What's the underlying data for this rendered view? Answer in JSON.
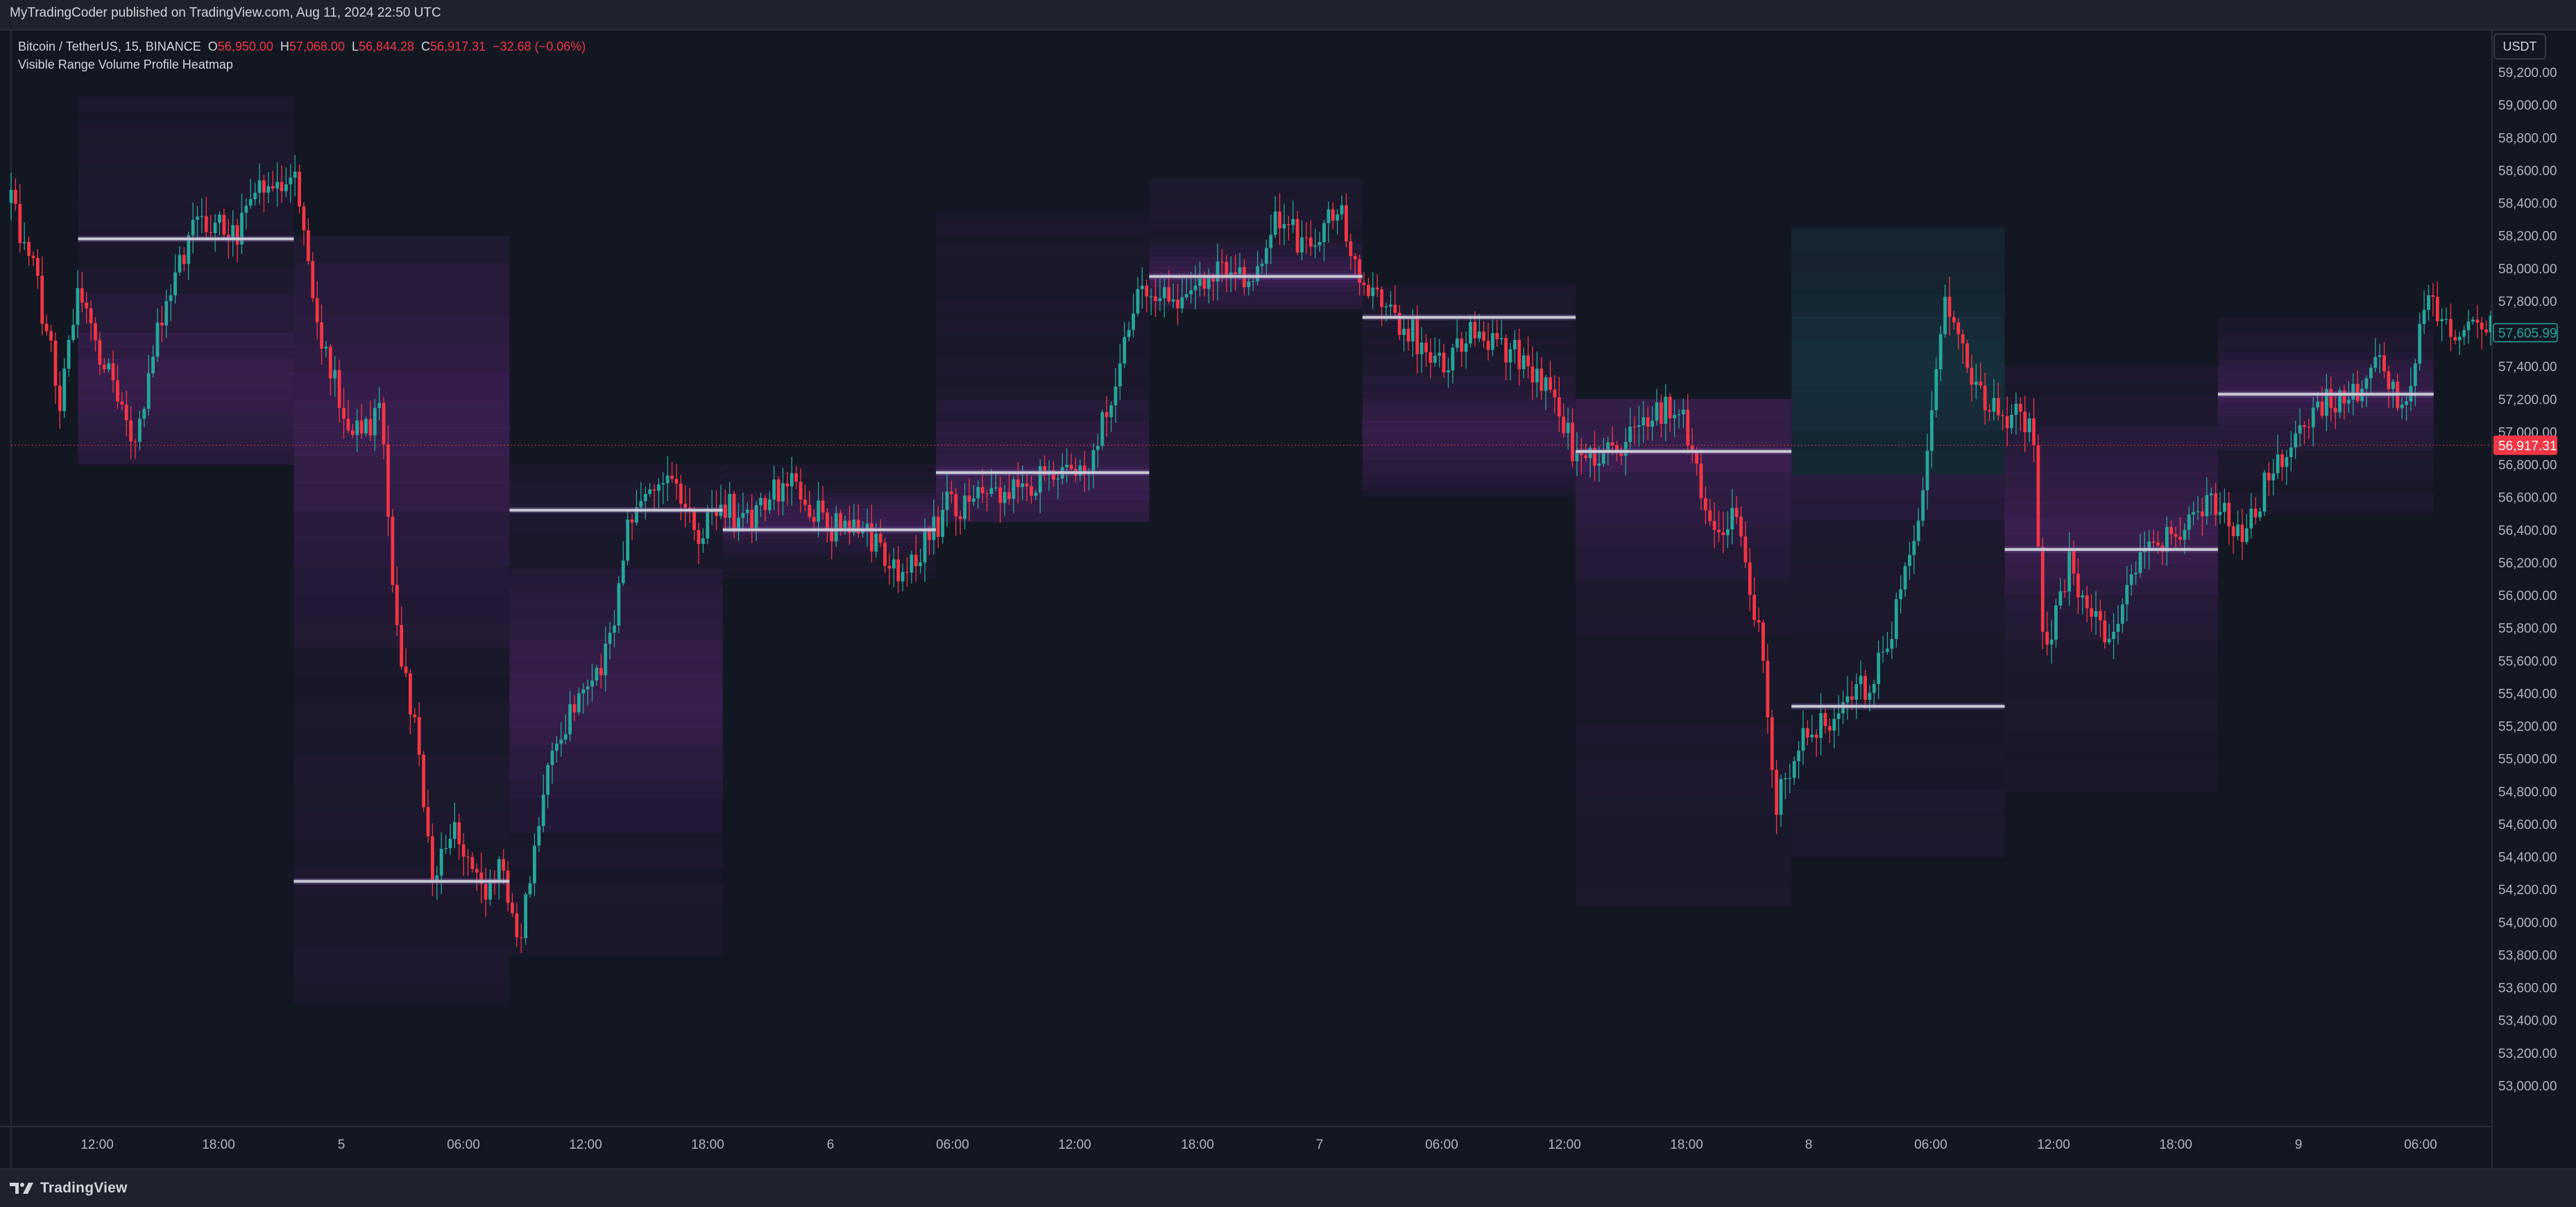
{
  "header": {
    "published_line": "MyTradingCoder published on TradingView.com, Aug 11, 2024 22:50 UTC"
  },
  "legend": {
    "symbol": "Bitcoin / TetherUS, 15, BINANCE",
    "open_label": "O",
    "open_value": "56,950.00",
    "high_label": "H",
    "high_value": "57,068.00",
    "low_label": "L",
    "low_value": "56,844.28",
    "close_label": "C",
    "close_value": "56,917.31",
    "change": "−32.68 (−0.06%)",
    "indicator": "Visible Range Volume Profile Heatmap"
  },
  "price_scale": {
    "currency": "USDT",
    "ticks": [
      "59,200.00",
      "59,000.00",
      "58,800.00",
      "58,600.00",
      "58,400.00",
      "58,200.00",
      "58,000.00",
      "57,800.00",
      "57,600.00",
      "57,400.00",
      "57,200.00",
      "57,000.00",
      "56,800.00",
      "56,600.00",
      "56,400.00",
      "56,200.00",
      "56,000.00",
      "55,800.00",
      "55,600.00",
      "55,400.00",
      "55,200.00",
      "55,000.00",
      "54,800.00",
      "54,600.00",
      "54,400.00",
      "54,200.00",
      "54,000.00",
      "53,800.00",
      "53,600.00",
      "53,400.00",
      "53,200.00",
      "53,000.00"
    ],
    "last_price_label": "56,917.31",
    "second_price_label": "57,605.99"
  },
  "time_scale": {
    "ticks": [
      "12:00",
      "18:00",
      "5",
      "06:00",
      "12:00",
      "18:00",
      "6",
      "06:00",
      "12:00",
      "18:00",
      "7",
      "06:00",
      "12:00",
      "18:00",
      "8",
      "06:00",
      "12:00",
      "18:00",
      "9",
      "06:00"
    ]
  },
  "colors": {
    "background": "#131722",
    "up": "#26a69a",
    "down": "#f23645",
    "poc": "#c8cad3",
    "profile_purple": "#7b2d9e",
    "profile_teal": "#1e5a6a"
  },
  "footer": {
    "brand": "TradingView"
  },
  "chart_data": {
    "type": "candlestick",
    "symbol": "Bitcoin / TetherUS",
    "interval": "15",
    "exchange": "BINANCE",
    "ylim": [
      52900,
      59400
    ],
    "y_ticks": [
      59200,
      59000,
      58800,
      58600,
      58400,
      58200,
      58000,
      57800,
      57600,
      57400,
      57200,
      57000,
      56800,
      56600,
      56400,
      56200,
      56000,
      55800,
      55600,
      55400,
      55200,
      55000,
      54800,
      54600,
      54400,
      54200,
      54000,
      53800,
      53600,
      53400,
      53200,
      53000
    ],
    "last_price": 56917.31,
    "price_path": [
      {
        "t": 0,
        "p": 58400
      },
      {
        "t": 0.012,
        "p": 57800
      },
      {
        "t": 0.02,
        "p": 57200
      },
      {
        "t": 0.028,
        "p": 57900
      },
      {
        "t": 0.038,
        "p": 57400
      },
      {
        "t": 0.05,
        "p": 56900
      },
      {
        "t": 0.062,
        "p": 57800
      },
      {
        "t": 0.075,
        "p": 58300
      },
      {
        "t": 0.09,
        "p": 58200
      },
      {
        "t": 0.1,
        "p": 58500
      },
      {
        "t": 0.115,
        "p": 58500
      },
      {
        "t": 0.125,
        "p": 57600
      },
      {
        "t": 0.135,
        "p": 57000
      },
      {
        "t": 0.15,
        "p": 57100
      },
      {
        "t": 0.155,
        "p": 55800
      },
      {
        "t": 0.165,
        "p": 55000
      },
      {
        "t": 0.17,
        "p": 54200
      },
      {
        "t": 0.178,
        "p": 54600
      },
      {
        "t": 0.19,
        "p": 54200
      },
      {
        "t": 0.198,
        "p": 54300
      },
      {
        "t": 0.205,
        "p": 53900
      },
      {
        "t": 0.215,
        "p": 54800
      },
      {
        "t": 0.225,
        "p": 55300
      },
      {
        "t": 0.24,
        "p": 55600
      },
      {
        "t": 0.25,
        "p": 56500
      },
      {
        "t": 0.265,
        "p": 56700
      },
      {
        "t": 0.275,
        "p": 56400
      },
      {
        "t": 0.285,
        "p": 56500
      },
      {
        "t": 0.3,
        "p": 56500
      },
      {
        "t": 0.315,
        "p": 56700
      },
      {
        "t": 0.33,
        "p": 56400
      },
      {
        "t": 0.345,
        "p": 56400
      },
      {
        "t": 0.36,
        "p": 56100
      },
      {
        "t": 0.375,
        "p": 56500
      },
      {
        "t": 0.39,
        "p": 56600
      },
      {
        "t": 0.405,
        "p": 56700
      },
      {
        "t": 0.42,
        "p": 56700
      },
      {
        "t": 0.435,
        "p": 56800
      },
      {
        "t": 0.445,
        "p": 57300
      },
      {
        "t": 0.455,
        "p": 57900
      },
      {
        "t": 0.47,
        "p": 57800
      },
      {
        "t": 0.485,
        "p": 58000
      },
      {
        "t": 0.5,
        "p": 57900
      },
      {
        "t": 0.51,
        "p": 58300
      },
      {
        "t": 0.525,
        "p": 58100
      },
      {
        "t": 0.535,
        "p": 58400
      },
      {
        "t": 0.545,
        "p": 57900
      },
      {
        "t": 0.56,
        "p": 57700
      },
      {
        "t": 0.575,
        "p": 57400
      },
      {
        "t": 0.59,
        "p": 57600
      },
      {
        "t": 0.605,
        "p": 57500
      },
      {
        "t": 0.62,
        "p": 57300
      },
      {
        "t": 0.632,
        "p": 56800
      },
      {
        "t": 0.645,
        "p": 56900
      },
      {
        "t": 0.66,
        "p": 57100
      },
      {
        "t": 0.675,
        "p": 57100
      },
      {
        "t": 0.685,
        "p": 56400
      },
      {
        "t": 0.695,
        "p": 56500
      },
      {
        "t": 0.705,
        "p": 55800
      },
      {
        "t": 0.712,
        "p": 54700
      },
      {
        "t": 0.725,
        "p": 55200
      },
      {
        "t": 0.74,
        "p": 55300
      },
      {
        "t": 0.755,
        "p": 55600
      },
      {
        "t": 0.77,
        "p": 56500
      },
      {
        "t": 0.78,
        "p": 57800
      },
      {
        "t": 0.79,
        "p": 57300
      },
      {
        "t": 0.8,
        "p": 57100
      },
      {
        "t": 0.815,
        "p": 57100
      },
      {
        "t": 0.82,
        "p": 55600
      },
      {
        "t": 0.83,
        "p": 56200
      },
      {
        "t": 0.845,
        "p": 55700
      },
      {
        "t": 0.86,
        "p": 56300
      },
      {
        "t": 0.875,
        "p": 56300
      },
      {
        "t": 0.885,
        "p": 56600
      },
      {
        "t": 0.9,
        "p": 56400
      },
      {
        "t": 0.915,
        "p": 56800
      },
      {
        "t": 0.93,
        "p": 57200
      },
      {
        "t": 0.945,
        "p": 57200
      },
      {
        "t": 0.955,
        "p": 57400
      },
      {
        "t": 0.965,
        "p": 57100
      },
      {
        "t": 0.975,
        "p": 57800
      },
      {
        "t": 0.985,
        "p": 57600
      }
    ],
    "volume_profiles": [
      {
        "t0": 0.027,
        "t1": 0.114,
        "poc": 58180,
        "lo": 56800,
        "hi": 59050,
        "hot": 57300
      },
      {
        "t0": 0.114,
        "t1": 0.201,
        "poc": 54250,
        "lo": 53500,
        "hi": 58200,
        "hot": 57000
      },
      {
        "t0": 0.201,
        "t1": 0.287,
        "poc": 56520,
        "lo": 53800,
        "hi": 56800,
        "hot": 55400
      },
      {
        "t0": 0.287,
        "t1": 0.373,
        "poc": 56400,
        "lo": 56100,
        "hi": 56800,
        "hot": 56450
      },
      {
        "t0": 0.373,
        "t1": 0.459,
        "poc": 56750,
        "lo": 56450,
        "hi": 58350,
        "hot": 56700
      },
      {
        "t0": 0.459,
        "t1": 0.545,
        "poc": 57950,
        "lo": 57750,
        "hi": 58550,
        "hot": 57950
      },
      {
        "t0": 0.545,
        "t1": 0.631,
        "poc": 57700,
        "lo": 56600,
        "hi": 57900,
        "hot": 57000
      },
      {
        "t0": 0.631,
        "t1": 0.718,
        "poc": 56880,
        "lo": 54100,
        "hi": 57200,
        "hot": 56900
      },
      {
        "t0": 0.718,
        "t1": 0.804,
        "poc": 55320,
        "lo": 54400,
        "hi": 58250,
        "hot": 57400
      },
      {
        "t0": 0.804,
        "t1": 0.89,
        "poc": 56280,
        "lo": 54800,
        "hi": 57400,
        "hot": 56400
      },
      {
        "t0": 0.89,
        "t1": 0.977,
        "poc": 57230,
        "lo": 56500,
        "hi": 57700,
        "hot": 57200
      }
    ]
  }
}
